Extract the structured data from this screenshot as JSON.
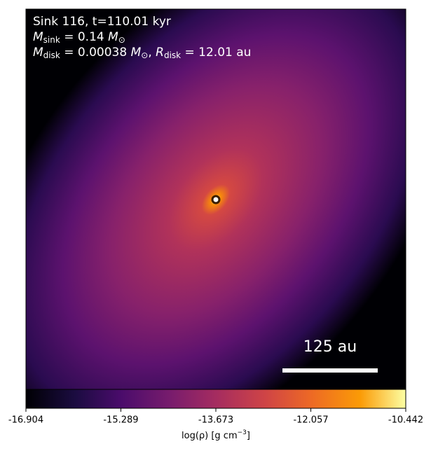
{
  "title": "Sink 116, t=110.01 kyr",
  "mass_line": {
    "symbol": "M",
    "sub": "sink",
    "value": " = 0.14 ",
    "unit": "M",
    "unit_sub": "⊙"
  },
  "disk_line": {
    "symbol": "M",
    "sub": "disk",
    "value": " = 0.00038 ",
    "unit": "M",
    "unit_sub": "⊙",
    "sep": ", ",
    "symbol2": "R",
    "sub2": "disk",
    "value2": " = 12.01 au"
  },
  "scale_bar": "125 au",
  "colorbar": {
    "ticks": [
      -16.904,
      -15.289,
      -13.673,
      -12.057,
      -10.442
    ],
    "label": "log(ρ) [g cm",
    "label_sup": "−3",
    "label_end": "]"
  }
}
